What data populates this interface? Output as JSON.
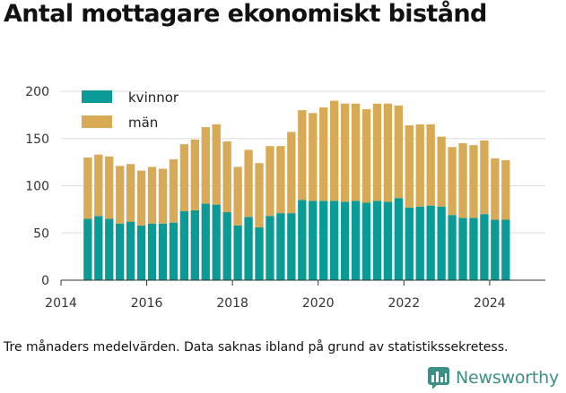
{
  "title": "Antal mottagare ekonomiskt bistånd",
  "caption": "Tre månaders medelvärden. Data saknas ibland på grund av statistikssekretess.",
  "brand": "Newsworthy",
  "brand_icon": "bar-chart-logo-icon",
  "colors": {
    "kvinnor": "#0a9b96",
    "man": "#d9aa55",
    "grid": "#dddddd",
    "brand": "#3b8f85"
  },
  "chart_data": {
    "type": "bar",
    "stacked": true,
    "title": "Antal mottagare ekonomiskt bistånd",
    "xlabel": "",
    "ylabel": "",
    "x": [
      "2014-Q3",
      "2014-Q4",
      "2015-Q1",
      "2015-Q2",
      "2015-Q3",
      "2015-Q4",
      "2016-Q1",
      "2016-Q2",
      "2016-Q3",
      "2016-Q4",
      "2017-Q1",
      "2017-Q2",
      "2017-Q3",
      "2017-Q4",
      "2018-Q1",
      "2018-Q2",
      "2018-Q3",
      "2018-Q4",
      "2019-Q1",
      "2019-Q2",
      "2019-Q3",
      "2019-Q4",
      "2020-Q1",
      "2020-Q2",
      "2020-Q3",
      "2020-Q4",
      "2021-Q1",
      "2021-Q2",
      "2021-Q3",
      "2021-Q4",
      "2022-Q1",
      "2022-Q2",
      "2022-Q3",
      "2022-Q4",
      "2023-Q1",
      "2023-Q2",
      "2023-Q3",
      "2023-Q4",
      "2024-Q1",
      "2024-Q2"
    ],
    "x_ticks": [
      "2014",
      "2016",
      "2018",
      "2020",
      "2022",
      "2024"
    ],
    "y_ticks": [
      0,
      50,
      100,
      150,
      200
    ],
    "ylim": [
      0,
      200
    ],
    "legend_position": "top-left",
    "grid": true,
    "series": [
      {
        "name": "kvinnor",
        "values": [
          65,
          68,
          65,
          60,
          62,
          58,
          60,
          60,
          61,
          73,
          74,
          81,
          80,
          72,
          58,
          67,
          56,
          68,
          71,
          71,
          85,
          84,
          84,
          84,
          83,
          84,
          82,
          84,
          83,
          87,
          77,
          78,
          79,
          78,
          69,
          66,
          66,
          70,
          64,
          64
        ]
      },
      {
        "name": "män",
        "values": [
          65,
          65,
          66,
          61,
          61,
          58,
          60,
          58,
          67,
          71,
          75,
          81,
          85,
          75,
          62,
          71,
          68,
          74,
          71,
          86,
          95,
          93,
          99,
          106,
          104,
          103,
          99,
          103,
          104,
          98,
          87,
          87,
          86,
          74,
          72,
          79,
          77,
          78,
          65,
          63
        ]
      }
    ]
  }
}
